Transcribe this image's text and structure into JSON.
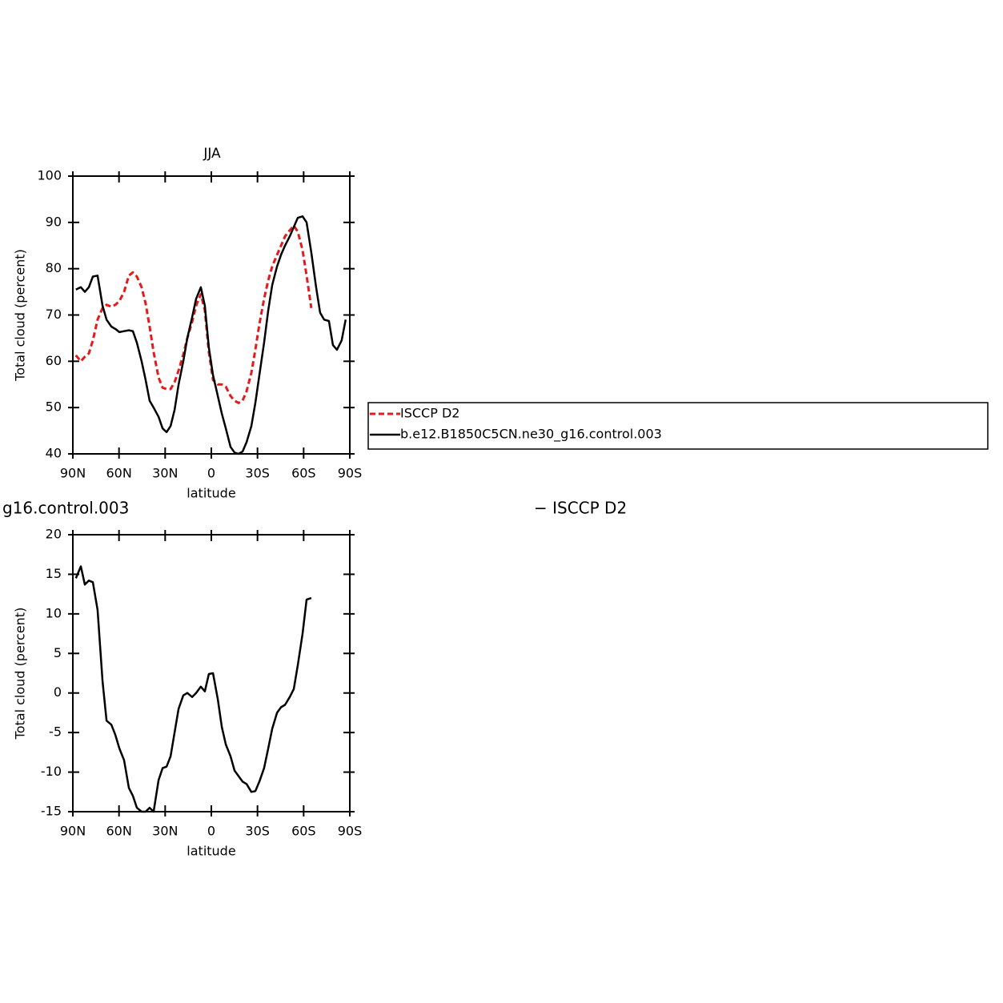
{
  "chart_data": [
    {
      "type": "line",
      "title": "JJA",
      "xlabel": "latitude",
      "ylabel": "Total cloud (percent)",
      "x": [
        88,
        84.8,
        82.2,
        79.6,
        77,
        73.9,
        70.7,
        68.1,
        65,
        62.4,
        59.8,
        56.7,
        53.6,
        51,
        48.4,
        45.3,
        42.7,
        40.1,
        37.5,
        34.3,
        31.7,
        29.1,
        26.5,
        23.9,
        21.3,
        18.2,
        15.6,
        12.5,
        9.9,
        6.8,
        4.2,
        1.6,
        -1.1,
        -4.2,
        -6.8,
        -9.4,
        -12.5,
        -15.1,
        -17.7,
        -20.3,
        -22.9,
        -26,
        -28.6,
        -31.2,
        -34.3,
        -37,
        -39.6,
        -42.7,
        -45.3,
        -47.9,
        -51,
        -53.6,
        -56.2,
        -59.3,
        -61.9,
        -65,
        -68.1,
        -70.7,
        -73.3,
        -76.4,
        -79,
        -81.6,
        -84.7,
        -87.3
      ],
      "series": [
        {
          "name": "ISCCP D2",
          "color": "#e41a1c",
          "line_style": "dashed",
          "values": [
            61.3,
            60,
            61,
            61.7,
            64.5,
            69,
            71.5,
            72.2,
            71.8,
            72.2,
            73,
            75,
            78.5,
            79.2,
            78.3,
            76,
            72.5,
            67.5,
            62,
            56.5,
            54.3,
            54,
            54,
            55.5,
            58,
            61.5,
            65,
            68.5,
            72,
            74.5,
            71,
            62,
            56,
            55,
            55,
            54.5,
            52.5,
            51.5,
            51,
            51.5,
            53.5,
            57.5,
            62.5,
            68,
            73.5,
            77.5,
            80.5,
            83,
            85,
            87,
            88.3,
            89.3,
            88,
            84,
            78.5,
            71.5,
            null,
            null,
            null,
            null,
            null,
            null,
            null,
            null
          ]
        },
        {
          "name": "b.e12.B1850C5CN.ne30_g16.control.003",
          "color": "#000000",
          "line_style": "solid",
          "values": [
            75.5,
            76,
            75,
            76,
            78.3,
            78.5,
            72,
            69,
            67.5,
            67,
            66.3,
            66.5,
            66.7,
            66.5,
            64,
            60,
            56,
            51.5,
            50,
            48,
            45.5,
            44.7,
            46,
            49.5,
            55,
            60,
            65,
            69.5,
            73.5,
            76,
            72,
            63,
            57,
            52.5,
            48.7,
            45.5,
            41.5,
            40.3,
            40,
            40.5,
            42.5,
            46,
            51,
            57,
            64,
            71,
            76.5,
            80.5,
            83,
            85,
            87,
            89,
            91,
            91.3,
            90,
            83.5,
            76,
            70.5,
            69,
            68.7,
            63.5,
            62.5,
            64.5,
            69
          ]
        }
      ],
      "xlim": [
        90,
        -90
      ],
      "xticks": [
        {
          "value": 90,
          "label": "90N"
        },
        {
          "value": 60,
          "label": "60N"
        },
        {
          "value": 30,
          "label": "30N"
        },
        0,
        {
          "value": -30,
          "label": "30S"
        },
        {
          "value": -60,
          "label": "60S"
        },
        {
          "value": -90,
          "label": "90S"
        }
      ],
      "ylim": [
        40,
        100
      ],
      "yticks": [
        40,
        50,
        60,
        70,
        80,
        90,
        100
      ],
      "legend": "right"
    },
    {
      "type": "line",
      "title": "g16.control.003",
      "subtitle": "− ISCCP D2",
      "xlabel": "latitude",
      "ylabel": "Total cloud (percent)",
      "x": [
        88,
        84.8,
        82.2,
        79.6,
        77,
        73.9,
        70.7,
        68.1,
        65,
        62.4,
        59.8,
        56.7,
        53.6,
        51,
        48.4,
        45.3,
        42.7,
        40.1,
        37.5,
        34.3,
        31.7,
        29.1,
        26.5,
        23.9,
        21.3,
        18.2,
        15.6,
        12.5,
        9.9,
        6.8,
        4.2,
        1.6,
        -1.1,
        -4.2,
        -6.8,
        -9.4,
        -12.5,
        -15.1,
        -17.7,
        -20.3,
        -22.9,
        -26,
        -28.6,
        -31.2,
        -34.3,
        -37,
        -39.6,
        -42.7,
        -45.3,
        -47.9,
        -51,
        -53.6,
        -56.2,
        -59.3,
        -61.9,
        -65
      ],
      "series": [
        {
          "color": "#000000",
          "line_style": "solid",
          "values": [
            14.5,
            16,
            13.7,
            14.2,
            14,
            10.5,
            1.5,
            -3.5,
            -4,
            -5.3,
            -7,
            -8.5,
            -12,
            -13,
            -14.5,
            -15,
            -15,
            -14.5,
            -15,
            -11,
            -9.5,
            -9.3,
            -8,
            -5,
            -2,
            -0.3,
            0,
            -0.5,
            0,
            0.8,
            0.2,
            2.4,
            2.5,
            -0.8,
            -4.3,
            -6.5,
            -8,
            -9.8,
            -10.5,
            -11.2,
            -11.5,
            -12.5,
            -12.4,
            -11.2,
            -9.5,
            -7,
            -4.5,
            -2.5,
            -1.8,
            -1.5,
            -0.5,
            0.5,
            3.5,
            7.5,
            11.8,
            12
          ]
        }
      ],
      "xlim": [
        90,
        -90
      ],
      "xticks": [
        {
          "value": 90,
          "label": "90N"
        },
        {
          "value": 60,
          "label": "60N"
        },
        {
          "value": 30,
          "label": "30N"
        },
        0,
        {
          "value": -30,
          "label": "30S"
        },
        {
          "value": -60,
          "label": "60S"
        },
        {
          "value": -90,
          "label": "90S"
        }
      ],
      "ylim": [
        -15,
        20
      ],
      "yticks": [
        -15,
        -10,
        -5,
        0,
        5,
        10,
        15,
        20
      ]
    }
  ]
}
